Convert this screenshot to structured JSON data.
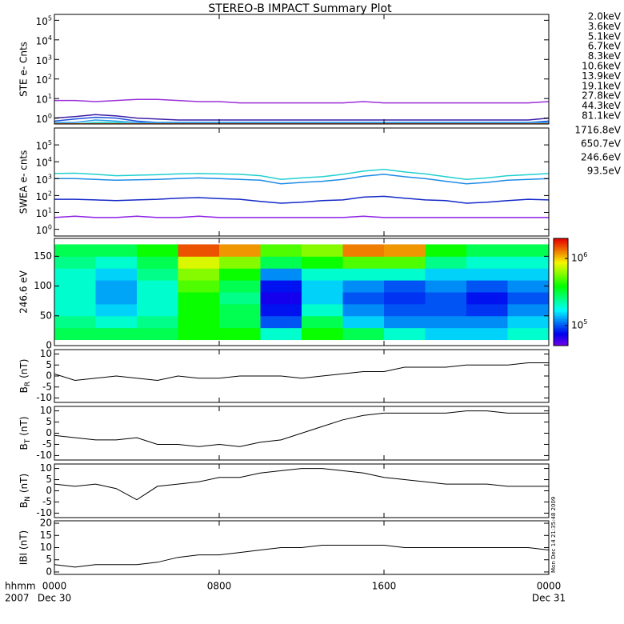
{
  "title": "STEREO-B IMPACT Summary Plot",
  "timestamp": "Mon Dec 14 21:35:48 2009",
  "x_unit": "hhmm",
  "year": "2007",
  "xlim": [
    0,
    24
  ],
  "xticks": [
    {
      "value": 0,
      "label": "0000"
    },
    {
      "value": 8,
      "label": "0800"
    },
    {
      "value": 16,
      "label": "1600"
    },
    {
      "value": 24,
      "label": "0000"
    }
  ],
  "xtick_dates": [
    {
      "value": 0,
      "label": "Dec 30"
    },
    {
      "value": 24,
      "label": "Dec 31"
    }
  ],
  "x": [
    0,
    1,
    2,
    3,
    4,
    5,
    6,
    7,
    8,
    9,
    10,
    11,
    12,
    13,
    14,
    15,
    16,
    17,
    18,
    19,
    20,
    21,
    22,
    23,
    24
  ],
  "chart_data": [
    {
      "type": "line",
      "ylabel": "STE e- Cnts",
      "ylog": true,
      "ylim": [
        0.5,
        200000
      ],
      "yticks": [
        {
          "value": 1,
          "label": "10",
          "power": "0"
        },
        {
          "value": 10,
          "label": "10",
          "power": "1"
        },
        {
          "value": 100,
          "label": "10",
          "power": "2"
        },
        {
          "value": 1000,
          "label": "10",
          "power": "3"
        },
        {
          "value": 10000,
          "label": "10",
          "power": "4"
        },
        {
          "value": 100000,
          "label": "10",
          "power": "5"
        }
      ],
      "series": [
        {
          "name": "2.0keV",
          "color": "#9b30d8",
          "values": [
            8,
            8,
            7,
            8,
            9,
            9,
            8,
            7,
            7,
            6,
            6,
            6,
            6,
            6,
            6,
            7,
            6,
            6,
            6,
            6,
            6,
            6,
            6,
            6,
            7
          ]
        },
        {
          "name": "3.6keV",
          "color": "#3c1ea8",
          "values": [
            1,
            1.2,
            1.5,
            1.3,
            1,
            0.9,
            0.8,
            0.8,
            0.8,
            0.8,
            0.8,
            0.8,
            0.8,
            0.8,
            0.8,
            0.8,
            0.8,
            0.8,
            0.8,
            0.8,
            0.8,
            0.8,
            0.8,
            0.8,
            1
          ]
        },
        {
          "name": "5.1keV",
          "color": "#1e50dc",
          "values": [
            0.7,
            0.9,
            1.1,
            1,
            0.7,
            0.6,
            0.6,
            0.6,
            0.6,
            0.6,
            0.6,
            0.6,
            0.6,
            0.6,
            0.6,
            0.6,
            0.6,
            0.6,
            0.6,
            0.6,
            0.6,
            0.6,
            0.6,
            0.6,
            0.7
          ]
        },
        {
          "name": "6.7keV",
          "color": "#28a0e6",
          "values": [
            0.6,
            0.6,
            0.8,
            0.7,
            0.6,
            0.6,
            0.6,
            0.6,
            0.6,
            0.6,
            0.6,
            0.6,
            0.6,
            0.6,
            0.6,
            0.6,
            0.6,
            0.6,
            0.6,
            0.6,
            0.6,
            0.6,
            0.6,
            0.6,
            0.6
          ]
        },
        {
          "name": "8.3keV",
          "color": "#20d0c8",
          "values": [
            0.5,
            0.5,
            0.6,
            0.6,
            0.5,
            0.5,
            0.5,
            0.5,
            0.5,
            0.5,
            0.5,
            0.5,
            0.5,
            0.5,
            0.5,
            0.5,
            0.5,
            0.5,
            0.5,
            0.5,
            0.5,
            0.5,
            0.5,
            0.5,
            0.5
          ]
        },
        {
          "name": "10.6keV",
          "color": "#20d070",
          "values": [
            0.5,
            0.5,
            0.5,
            0.5,
            0.5,
            0.5,
            0.5,
            0.5,
            0.5,
            0.5,
            0.5,
            0.5,
            0.5,
            0.5,
            0.5,
            0.5,
            0.5,
            0.5,
            0.5,
            0.5,
            0.5,
            0.5,
            0.5,
            0.5,
            0.5
          ]
        },
        {
          "name": "13.9keV",
          "color": "#30c020",
          "values": [
            0.5,
            0.5,
            0.5,
            0.5,
            0.5,
            0.5,
            0.5,
            0.5,
            0.5,
            0.5,
            0.5,
            0.5,
            0.5,
            0.5,
            0.5,
            0.5,
            0.5,
            0.5,
            0.5,
            0.5,
            0.5,
            0.5,
            0.5,
            0.5,
            0.5
          ]
        },
        {
          "name": "19.1keV",
          "color": "#c8d020",
          "values": [
            0.5,
            0.5,
            0.5,
            0.5,
            0.5,
            0.5,
            0.5,
            0.5,
            0.5,
            0.5,
            0.5,
            0.5,
            0.5,
            0.5,
            0.5,
            0.5,
            0.5,
            0.5,
            0.5,
            0.5,
            0.5,
            0.5,
            0.5,
            0.5,
            0.5
          ]
        },
        {
          "name": "27.8keV",
          "color": "#f0c000",
          "values": [
            0.5,
            0.5,
            0.5,
            0.5,
            0.5,
            0.5,
            0.5,
            0.5,
            0.5,
            0.5,
            0.5,
            0.5,
            0.5,
            0.5,
            0.5,
            0.5,
            0.5,
            0.5,
            0.5,
            0.5,
            0.5,
            0.5,
            0.5,
            0.5,
            0.5
          ]
        },
        {
          "name": "44.3keV",
          "color": "#f08000",
          "values": [
            0.5,
            0.5,
            0.5,
            0.5,
            0.5,
            0.5,
            0.5,
            0.5,
            0.5,
            0.5,
            0.5,
            0.5,
            0.5,
            0.5,
            0.5,
            0.5,
            0.5,
            0.5,
            0.5,
            0.5,
            0.5,
            0.5,
            0.5,
            0.5,
            0.5
          ]
        },
        {
          "name": "81.1keV",
          "color": "#e02020",
          "values": [
            0.5,
            0.5,
            0.5,
            0.5,
            0.5,
            0.5,
            0.5,
            0.5,
            0.5,
            0.5,
            0.5,
            0.5,
            0.5,
            0.5,
            0.5,
            0.5,
            0.5,
            0.5,
            0.5,
            0.5,
            0.5,
            0.5,
            0.5,
            0.5,
            0.5
          ]
        }
      ]
    },
    {
      "type": "line",
      "ylabel": "SWEA e- cnts",
      "ylog": true,
      "ylim": [
        0.4,
        1000000
      ],
      "yticks": [
        {
          "value": 1,
          "label": "10",
          "power": "0"
        },
        {
          "value": 10,
          "label": "10",
          "power": "1"
        },
        {
          "value": 100,
          "label": "10",
          "power": "2"
        },
        {
          "value": 1000,
          "label": "10",
          "power": "3"
        },
        {
          "value": 10000,
          "label": "10",
          "power": "4"
        },
        {
          "value": 100000,
          "label": "10",
          "power": "5"
        }
      ],
      "series": [
        {
          "name": "1716.8eV",
          "color": "#8c1ee6",
          "values": [
            5,
            6,
            5,
            5,
            6,
            5,
            5,
            6,
            5,
            5,
            5,
            5,
            5,
            5,
            5,
            6,
            5,
            5,
            5,
            5,
            5,
            5,
            5,
            5,
            5
          ]
        },
        {
          "name": "650.7eV",
          "color": "#1428c8",
          "values": [
            60,
            60,
            55,
            50,
            55,
            60,
            70,
            75,
            65,
            60,
            45,
            35,
            40,
            50,
            55,
            80,
            90,
            70,
            55,
            50,
            35,
            40,
            50,
            60,
            55
          ]
        },
        {
          "name": "246.6eV",
          "color": "#1e8ce6",
          "values": [
            1000,
            1000,
            900,
            800,
            850,
            900,
            1000,
            1100,
            1000,
            900,
            800,
            500,
            600,
            700,
            900,
            1400,
            1800,
            1300,
            1000,
            700,
            500,
            600,
            800,
            900,
            1000
          ]
        },
        {
          "name": "93.5eV",
          "color": "#20d0d0",
          "values": [
            2000,
            2100,
            1800,
            1500,
            1600,
            1700,
            1900,
            2000,
            1900,
            1800,
            1500,
            900,
            1100,
            1300,
            1800,
            2800,
            3500,
            2500,
            1900,
            1300,
            900,
            1100,
            1500,
            1700,
            2000
          ]
        }
      ]
    },
    {
      "type": "heatmap",
      "ylabel": "246.6 eV",
      "ylim": [
        0,
        180
      ],
      "yticks": [
        0,
        50,
        100,
        150
      ],
      "colormap": "rainbow",
      "zlog": true,
      "zlim": [
        50000,
        2000000
      ],
      "zticks": [
        {
          "value": 100000,
          "label": "10",
          "power": "5"
        },
        {
          "value": 1000000,
          "label": "10",
          "power": "6"
        }
      ],
      "x_bins": [
        0,
        2,
        4,
        6,
        8,
        10,
        12,
        14,
        16,
        18,
        20,
        22,
        24
      ],
      "y_bins": [
        10,
        30,
        50,
        70,
        90,
        110,
        130,
        150,
        170
      ],
      "z": [
        [
          300000,
          250000,
          200000,
          200000,
          200000,
          200000,
          250000,
          300000
        ],
        [
          300000,
          200000,
          150000,
          130000,
          130000,
          150000,
          200000,
          300000
        ],
        [
          300000,
          250000,
          200000,
          200000,
          200000,
          250000,
          300000,
          400000
        ],
        [
          400000,
          400000,
          400000,
          400000,
          500000,
          600000,
          800000,
          1500000
        ],
        [
          400000,
          300000,
          300000,
          250000,
          300000,
          400000,
          600000,
          1200000
        ],
        [
          200000,
          100000,
          80000,
          70000,
          80000,
          120000,
          300000,
          500000
        ],
        [
          400000,
          300000,
          200000,
          150000,
          150000,
          200000,
          400000,
          600000
        ],
        [
          300000,
          150000,
          120000,
          100000,
          120000,
          200000,
          500000,
          1300000
        ],
        [
          200000,
          120000,
          100000,
          90000,
          100000,
          200000,
          500000,
          1200000
        ],
        [
          150000,
          120000,
          100000,
          100000,
          120000,
          150000,
          250000,
          400000
        ],
        [
          150000,
          120000,
          90000,
          80000,
          100000,
          150000,
          200000,
          300000
        ],
        [
          200000,
          150000,
          120000,
          100000,
          120000,
          150000,
          200000,
          300000
        ]
      ]
    },
    {
      "type": "line",
      "ylabel": {
        "text": "B",
        "sub": "R",
        "unit": "(nT)"
      },
      "ylim": [
        -12,
        12
      ],
      "yticks": [
        -10,
        -5,
        0,
        5,
        10
      ],
      "color": "#000000",
      "values": [
        1,
        -2,
        -1,
        0,
        -1,
        -2,
        0,
        -1,
        -1,
        0,
        0,
        0,
        -1,
        0,
        1,
        2,
        2,
        4,
        4,
        4,
        5,
        5,
        5,
        6,
        6
      ]
    },
    {
      "type": "line",
      "ylabel": {
        "text": "B",
        "sub": "T",
        "unit": "(nT)"
      },
      "ylim": [
        -12,
        12
      ],
      "yticks": [
        -10,
        -5,
        0,
        5,
        10
      ],
      "color": "#000000",
      "values": [
        -1,
        -2,
        -3,
        -3,
        -2,
        -5,
        -5,
        -6,
        -5,
        -6,
        -4,
        -3,
        0,
        3,
        6,
        8,
        9,
        9,
        9,
        9,
        10,
        10,
        9,
        9,
        9
      ]
    },
    {
      "type": "line",
      "ylabel": {
        "text": "B",
        "sub": "N",
        "unit": "(nT)"
      },
      "ylim": [
        -12,
        12
      ],
      "yticks": [
        -10,
        -5,
        0,
        5,
        10
      ],
      "color": "#000000",
      "values": [
        3,
        2,
        3,
        1,
        -4,
        2,
        3,
        4,
        6,
        6,
        8,
        9,
        10,
        10,
        9,
        8,
        6,
        5,
        4,
        3,
        3,
        3,
        2,
        2,
        2
      ]
    },
    {
      "type": "line",
      "ylabel": "IBI (nT)",
      "ylim": [
        -1,
        21
      ],
      "yticks": [
        0,
        5,
        10,
        15,
        20
      ],
      "color": "#000000",
      "values": [
        3,
        2,
        3,
        3,
        3,
        4,
        6,
        7,
        7,
        8,
        9,
        10,
        10,
        11,
        11,
        11,
        11,
        10,
        10,
        10,
        10,
        10,
        10,
        10,
        9
      ]
    }
  ]
}
